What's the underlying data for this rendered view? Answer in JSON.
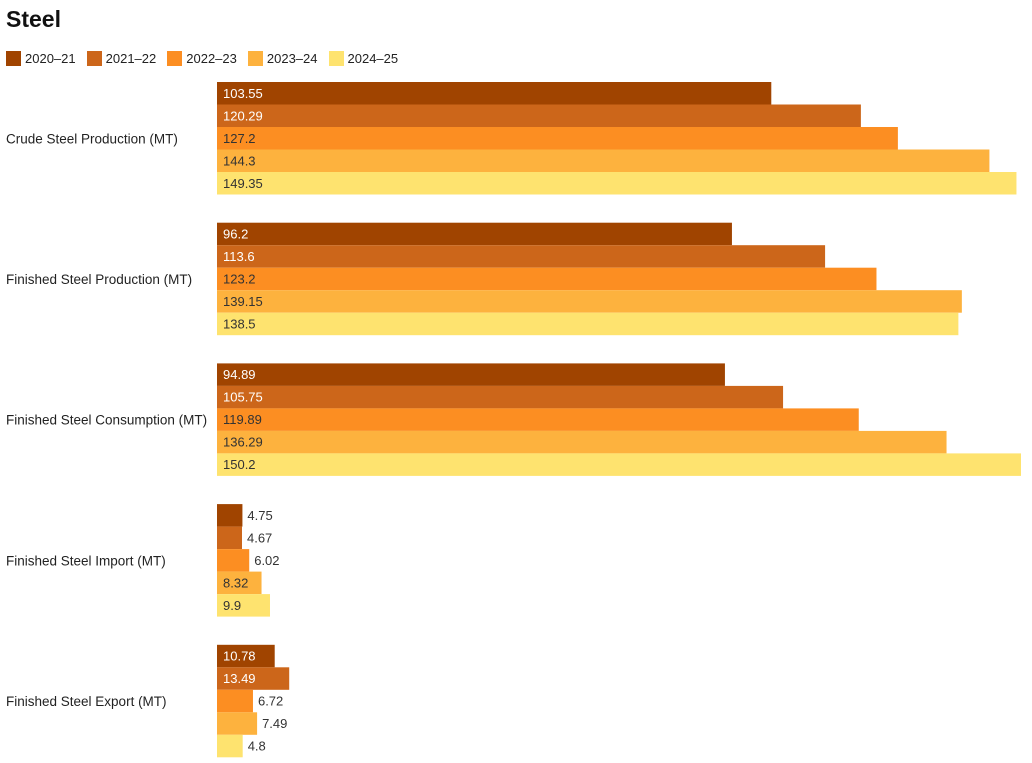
{
  "chart_data": {
    "type": "bar",
    "orientation": "horizontal",
    "title": "Steel",
    "categories": [
      "Crude Steel Production (MT)",
      "Finished Steel Production (MT)",
      "Finished Steel Consumption (MT)",
      "Finished Steel Import (MT)",
      "Finished Steel Export (MT)"
    ],
    "series": [
      {
        "name": "2020–21",
        "color": "#a04400",
        "label_color": "#ffffff",
        "values": [
          103.55,
          96.2,
          94.89,
          4.75,
          10.78
        ]
      },
      {
        "name": "2021–22",
        "color": "#cc661a",
        "label_color": "#ffffff",
        "values": [
          120.29,
          113.6,
          105.75,
          4.67,
          13.49
        ]
      },
      {
        "name": "2022–23",
        "color": "#fc8e22",
        "label_color": "#333333",
        "values": [
          127.2,
          123.2,
          119.89,
          6.02,
          6.72
        ]
      },
      {
        "name": "2023–24",
        "color": "#fdb23e",
        "label_color": "#333333",
        "values": [
          144.3,
          139.15,
          136.29,
          8.32,
          7.49
        ]
      },
      {
        "name": "2024–25",
        "color": "#fee36f",
        "label_color": "#333333",
        "values": [
          149.35,
          138.5,
          150.2,
          9.9,
          4.8
        ]
      }
    ],
    "legend_position": "top-left",
    "grid": false,
    "xlim": [
      0,
      150.2
    ]
  }
}
